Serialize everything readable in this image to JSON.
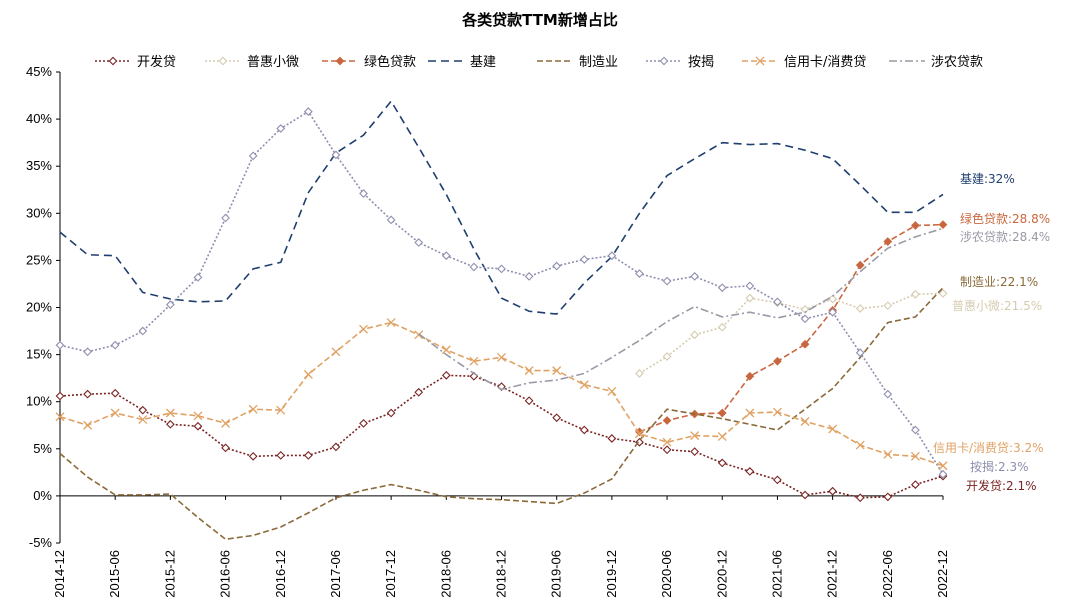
{
  "chart_data": {
    "type": "line",
    "title": "各类贷款TTM新增占比",
    "xlabel": "",
    "ylabel": "",
    "ylim": [
      -5,
      45
    ],
    "ytick_step": 5,
    "y_tick_labels": [
      "-5%",
      "0%",
      "5%",
      "10%",
      "15%",
      "20%",
      "25%",
      "30%",
      "35%",
      "40%",
      "45%"
    ],
    "x_tick_labels": [
      "2014-12",
      "2015-06",
      "2015-12",
      "2016-06",
      "2016-12",
      "2017-06",
      "2017-12",
      "2018-06",
      "2018-12",
      "2019-06",
      "2019-12",
      "2020-06",
      "2020-12",
      "2021-06",
      "2021-12",
      "2022-06",
      "2022-12"
    ],
    "x": [
      "2014-12",
      "2015-03",
      "2015-06",
      "2015-09",
      "2015-12",
      "2016-03",
      "2016-06",
      "2016-09",
      "2016-12",
      "2017-03",
      "2017-06",
      "2017-09",
      "2017-12",
      "2018-03",
      "2018-06",
      "2018-09",
      "2018-12",
      "2019-03",
      "2019-06",
      "2019-09",
      "2019-12",
      "2020-03",
      "2020-06",
      "2020-09",
      "2020-12",
      "2021-03",
      "2021-06",
      "2021-09",
      "2021-12",
      "2022-03",
      "2022-06",
      "2022-09",
      "2022-12"
    ],
    "grid": false,
    "legend_position": "top",
    "series": [
      {
        "name": "开发贷",
        "color": "#7B2424",
        "dash": "2,2",
        "marker": "diamond-open",
        "values": [
          10.6,
          10.8,
          10.9,
          9.1,
          7.6,
          7.4,
          5.1,
          4.2,
          4.3,
          4.3,
          5.2,
          7.7,
          8.8,
          11.0,
          12.8,
          12.7,
          11.6,
          10.1,
          8.3,
          7.0,
          6.1,
          5.7,
          4.9,
          4.7,
          3.5,
          2.6,
          1.7,
          0.1,
          0.5,
          -0.2,
          -0.1,
          1.2,
          2.1
        ],
        "end_label": "开发贷:2.1%"
      },
      {
        "name": "普惠小微",
        "color": "#D6CBAF",
        "dash": "2,2",
        "marker": "diamond-open",
        "values": [
          null,
          null,
          null,
          null,
          null,
          null,
          null,
          null,
          null,
          null,
          null,
          null,
          null,
          null,
          null,
          null,
          null,
          null,
          null,
          null,
          null,
          13.0,
          14.8,
          17.1,
          17.9,
          21.0,
          20.5,
          19.8,
          20.9,
          19.9,
          20.2,
          21.4,
          21.5
        ],
        "end_label": "普惠小微:21.5%"
      },
      {
        "name": "绿色贷款",
        "color": "#C8673F",
        "dash": "6,3",
        "marker": "diamond-filled",
        "values": [
          null,
          null,
          null,
          null,
          null,
          null,
          null,
          null,
          null,
          null,
          null,
          null,
          null,
          null,
          null,
          null,
          null,
          null,
          null,
          null,
          null,
          6.8,
          8.0,
          8.7,
          8.8,
          12.7,
          14.3,
          16.1,
          19.7,
          24.5,
          27.0,
          28.7,
          28.8
        ],
        "end_label": "绿色贷款:28.8%"
      },
      {
        "name": "基建",
        "color": "#1F3F6E",
        "dash": "8,5",
        "marker": "none",
        "values": [
          28.0,
          25.6,
          25.5,
          21.6,
          20.9,
          20.6,
          20.7,
          24.1,
          24.8,
          32.2,
          36.4,
          38.3,
          41.9,
          37.0,
          32.0,
          26.2,
          21.0,
          19.6,
          19.3,
          22.6,
          25.4,
          30.0,
          34.0,
          35.8,
          37.5,
          37.3,
          37.4,
          36.7,
          35.8,
          33.0,
          30.1,
          30.1,
          32.0
        ],
        "end_label": "基建:32%"
      },
      {
        "name": "制造业",
        "color": "#8B6A3A",
        "dash": "6,3",
        "marker": "none",
        "values": [
          4.5,
          2.0,
          0.1,
          0.1,
          0.2,
          -2.3,
          -4.6,
          -4.2,
          -3.3,
          -1.8,
          -0.2,
          0.6,
          1.2,
          0.6,
          -0.1,
          -0.3,
          -0.4,
          -0.6,
          -0.8,
          0.3,
          1.8,
          5.9,
          9.2,
          8.7,
          8.2,
          7.6,
          7.0,
          9.2,
          11.4,
          14.7,
          18.4,
          19.0,
          22.1
        ],
        "end_label": "制造业:22.1%"
      },
      {
        "name": "按揭",
        "color": "#8E8FAF",
        "dash": "2,2",
        "marker": "diamond-open",
        "values": [
          16.0,
          15.3,
          16.0,
          17.5,
          20.3,
          23.2,
          29.5,
          36.1,
          39.0,
          40.8,
          36.2,
          32.1,
          29.3,
          26.9,
          25.5,
          24.3,
          24.1,
          23.3,
          24.4,
          25.1,
          25.5,
          23.6,
          22.8,
          23.3,
          22.1,
          22.3,
          20.6,
          18.8,
          19.5,
          15.2,
          10.8,
          7.0,
          2.3
        ],
        "end_label": "按揭:2.3%"
      },
      {
        "name": "信用卡/消费贷",
        "color": "#E0A264",
        "dash": "6,3",
        "marker": "x",
        "values": [
          8.4,
          7.5,
          8.8,
          8.1,
          8.8,
          8.5,
          7.7,
          9.2,
          9.1,
          12.9,
          15.3,
          17.7,
          18.4,
          17.1,
          15.5,
          14.3,
          14.7,
          13.3,
          13.3,
          11.8,
          11.1,
          6.6,
          5.7,
          6.4,
          6.3,
          8.8,
          8.9,
          7.9,
          7.1,
          5.4,
          4.4,
          4.2,
          3.2
        ],
        "end_label": "信用卡/消费贷:3.2%"
      },
      {
        "name": "涉农贷款",
        "color": "#9A9AA6",
        "dash": "8,3,2,3",
        "marker": "none",
        "values": [
          null,
          null,
          null,
          null,
          null,
          null,
          null,
          null,
          null,
          null,
          null,
          null,
          null,
          17.2,
          15.0,
          13.0,
          11.3,
          12.0,
          12.3,
          13.0,
          14.7,
          16.5,
          18.5,
          20.1,
          19.0,
          19.5,
          18.9,
          19.5,
          21.2,
          23.8,
          26.3,
          27.5,
          28.4
        ],
        "end_label": "涉农贷款:28.4%"
      }
    ]
  }
}
